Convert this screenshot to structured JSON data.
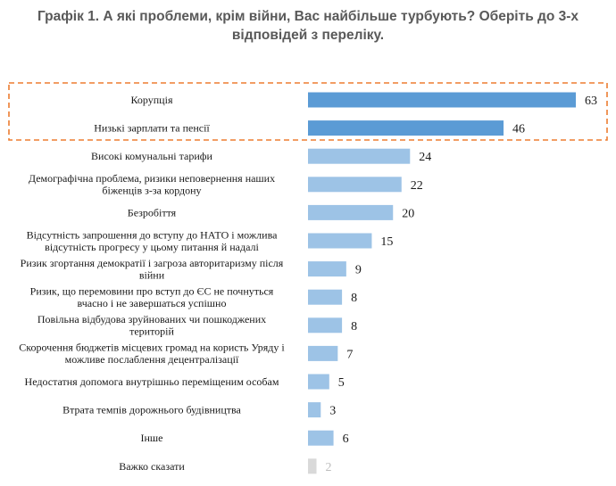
{
  "chart_data": {
    "type": "bar",
    "orientation": "horizontal",
    "title": "Графік 1. А які проблеми, крім війни, Вас найбільше турбують? Оберіть до 3-х відповідей з переліку.",
    "categories": [
      "Корупція",
      "Низькі зарплати та пенсії",
      "Високі комунальні тарифи",
      "Демографічна проблема, ризики неповернення наших біженців з-за кордону",
      "Безробіття",
      "Відсутність запрошення до вступу до НАТО і можлива відсутність прогресу у цьому питання й надалі",
      "Ризик згортання демократії і загроза авторитаризму після війни",
      "Ризик, що перемовини про вступ до ЄС не почнуться вчасно і не завершаться успішно",
      "Повільна відбудова зруйнованих чи пошкоджених територій",
      "Скорочення бюджетів місцевих громад на користь Уряду і можливе послаблення децентралізації",
      "Недостатня допомога внутрішньо переміщеним особам",
      "Втрата темпів дорожнього будівництва",
      "Інше",
      "Важко сказати"
    ],
    "category_lines": [
      [
        "Корупція"
      ],
      [
        "Низькі зарплати та пенсії"
      ],
      [
        "Високі комунальні тарифи"
      ],
      [
        "Демографічна проблема, ризики неповернення наших",
        "біженців з-за кордону"
      ],
      [
        "Безробіття"
      ],
      [
        "Відсутність запрошення до вступу до НАТО і можлива",
        "відсутність прогресу у цьому питання й надалі"
      ],
      [
        "Ризик  згортання демократії і загроза авторитаризму після",
        "війни"
      ],
      [
        "Ризик, що перемовини про вступ до ЄС не почнуться",
        "вчасно і не завершаться успішно"
      ],
      [
        "Повільна відбудова зруйнованих чи пошкоджених",
        "територій"
      ],
      [
        "Скорочення бюджетів місцевих громад на користь Уряду і",
        "можливе послаблення децентралізації"
      ],
      [
        "Недостатня допомога внутрішньо переміщеним особам"
      ],
      [
        "Втрата темпів дорожнього будівництва"
      ],
      [
        "Інше"
      ],
      [
        "Важко сказати"
      ]
    ],
    "values": [
      63,
      46,
      24,
      22,
      20,
      15,
      9,
      8,
      8,
      7,
      5,
      3,
      6,
      2
    ],
    "value_labels": [
      "63",
      "46",
      "24",
      "22",
      "20",
      "15",
      "9",
      "8",
      "8",
      "7",
      "5",
      "3",
      "6",
      "2"
    ],
    "highlighted_categories": [
      0,
      1
    ],
    "colors": {
      "highlight": "#5b9bd5",
      "bar": "#9dc3e6",
      "muted": "#d9d9d9",
      "highlight_box": "#ed7d31"
    },
    "xlim": [
      0,
      63
    ],
    "grid": false,
    "legend": "none"
  }
}
